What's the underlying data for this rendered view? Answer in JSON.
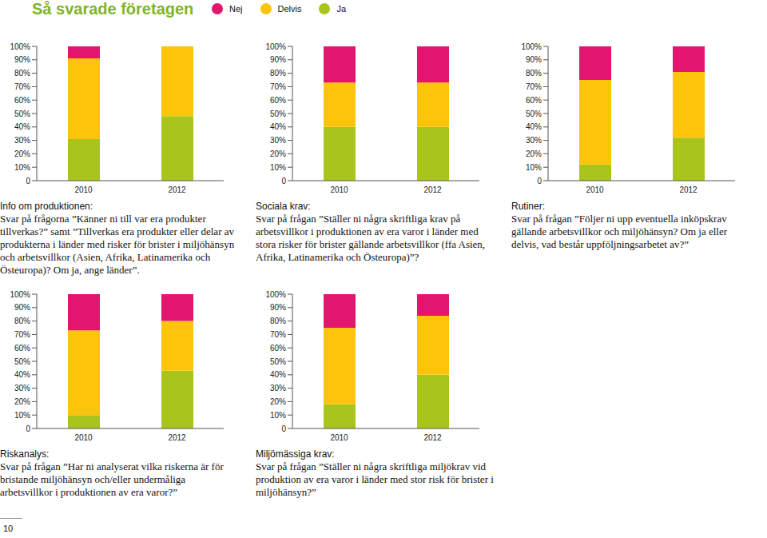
{
  "title": "Så svarade företagen",
  "page_number": "10",
  "chart_data": [
    {
      "type": "bar",
      "stacked": true,
      "title": "Info om produktionen:",
      "description": "Svar på frågorna ”Känner ni till var era produkter tillverkas?” samt ”Tillverkas era produkter eller delar av produkterna i länder med risker för brister i miljöhänsyn och arbetsvillkor (Asien, Afrika, Latinamerika och Östeuropa)? Om ja, ange länder”.",
      "categories": [
        "2010",
        "2012"
      ],
      "series": [
        {
          "name": "Ja",
          "color": "#a9c51b",
          "values": [
            31,
            48
          ]
        },
        {
          "name": "Delvis",
          "color": "#fdc40c",
          "values": [
            60,
            52
          ]
        },
        {
          "name": "Nej",
          "color": "#e2156f",
          "values": [
            9,
            0
          ]
        }
      ],
      "ylim": [
        0,
        100
      ],
      "yticks": [
        0,
        {
          "value": 10,
          "label": "10%"
        },
        {
          "value": 20,
          "label": "20%"
        },
        {
          "value": 30,
          "label": "30%"
        },
        {
          "value": 40,
          "label": "40%"
        },
        {
          "value": 50,
          "label": "50%"
        },
        {
          "value": 60,
          "label": "60%"
        },
        {
          "value": 70,
          "label": "70%"
        },
        {
          "value": 80,
          "label": "80%"
        },
        {
          "value": 90,
          "label": "90%"
        },
        {
          "value": 100,
          "label": "100%"
        }
      ]
    },
    {
      "type": "bar",
      "stacked": true,
      "title": "Sociala krav:",
      "description": "Svar på frågan ”Ställer ni några skriftliga krav på arbetsvillkor i produktionen av era varor i länder med stora risker för brister gällande arbetsvillkor (ffa Asien, Afrika, Latinamerika och Östeuropa)”?",
      "categories": [
        "2010",
        "2012"
      ],
      "series": [
        {
          "name": "Ja",
          "color": "#a9c51b",
          "values": [
            40,
            40
          ]
        },
        {
          "name": "Delvis",
          "color": "#fdc40c",
          "values": [
            33,
            33
          ]
        },
        {
          "name": "Nej",
          "color": "#e2156f",
          "values": [
            27,
            27
          ]
        }
      ],
      "ylim": [
        0,
        100
      ],
      "yticks": [
        0,
        {
          "value": 10,
          "label": "10%"
        },
        {
          "value": 20,
          "label": "20%"
        },
        {
          "value": 30,
          "label": "30%"
        },
        {
          "value": 40,
          "label": "40%"
        },
        {
          "value": 50,
          "label": "50%"
        },
        {
          "value": 60,
          "label": "60%"
        },
        {
          "value": 70,
          "label": "70%"
        },
        {
          "value": 80,
          "label": "80%"
        },
        {
          "value": 90,
          "label": "90%"
        },
        {
          "value": 100,
          "label": "100%"
        }
      ]
    },
    {
      "type": "bar",
      "stacked": true,
      "title": "Rutiner:",
      "description": "Svar på frågan ”Följer ni upp eventuella inköpskrav gällande arbetsvillkor och miljöhänsyn? Om ja eller delvis, vad består uppföljningsarbetet av?”",
      "categories": [
        "2010",
        "2012"
      ],
      "series": [
        {
          "name": "Ja",
          "color": "#a9c51b",
          "values": [
            12,
            32
          ]
        },
        {
          "name": "Delvis",
          "color": "#fdc40c",
          "values": [
            63,
            49
          ]
        },
        {
          "name": "Nej",
          "color": "#e2156f",
          "values": [
            25,
            19
          ]
        }
      ],
      "ylim": [
        0,
        100
      ],
      "yticks": [
        0,
        {
          "value": 10,
          "label": "10%"
        },
        {
          "value": 20,
          "label": "20%"
        },
        {
          "value": 30,
          "label": "30%"
        },
        {
          "value": 40,
          "label": "40%"
        },
        {
          "value": 50,
          "label": "50%"
        },
        {
          "value": 60,
          "label": "60%"
        },
        {
          "value": 70,
          "label": "70%"
        },
        {
          "value": 80,
          "label": "80%"
        },
        {
          "value": 90,
          "label": "90%"
        },
        {
          "value": 100,
          "label": "100%"
        }
      ]
    },
    {
      "type": "bar",
      "stacked": true,
      "title": "Riskanalys:",
      "description": "Svar på frågan ”Har ni analyserat vilka riskerna är för bristande miljöhänsyn och/eller undermåliga arbetsvillkor i produktionen av era varor?”",
      "categories": [
        "2010",
        "2012"
      ],
      "series": [
        {
          "name": "Ja",
          "color": "#a9c51b",
          "values": [
            10,
            43
          ]
        },
        {
          "name": "Delvis",
          "color": "#fdc40c",
          "values": [
            63,
            37
          ]
        },
        {
          "name": "Nej",
          "color": "#e2156f",
          "values": [
            27,
            20
          ]
        }
      ],
      "ylim": [
        0,
        100
      ],
      "yticks": [
        0,
        {
          "value": 10,
          "label": "10%"
        },
        {
          "value": 20,
          "label": "20%"
        },
        {
          "value": 30,
          "label": "30%"
        },
        {
          "value": 40,
          "label": "40%"
        },
        {
          "value": 50,
          "label": "50%"
        },
        {
          "value": 60,
          "label": "60%"
        },
        {
          "value": 70,
          "label": "70%"
        },
        {
          "value": 80,
          "label": "80%"
        },
        {
          "value": 90,
          "label": "90%"
        },
        {
          "value": 100,
          "label": "100%"
        }
      ]
    },
    {
      "type": "bar",
      "stacked": true,
      "title": "Miljömässiga krav:",
      "description": "Svar på frågan ”Ställer ni några skriftliga miljökrav vid produktion av era varor i länder med stor risk för brister i miljöhänsyn?”",
      "categories": [
        "2010",
        "2012"
      ],
      "series": [
        {
          "name": "Ja",
          "color": "#a9c51b",
          "values": [
            18,
            40
          ]
        },
        {
          "name": "Delvis",
          "color": "#fdc40c",
          "values": [
            57,
            44
          ]
        },
        {
          "name": "Nej",
          "color": "#e2156f",
          "values": [
            25,
            16
          ]
        }
      ],
      "ylim": [
        0,
        100
      ],
      "yticks": [
        0,
        {
          "value": 10,
          "label": "10%"
        },
        {
          "value": 20,
          "label": "20%"
        },
        {
          "value": 30,
          "label": "30%"
        },
        {
          "value": 40,
          "label": "40%"
        },
        {
          "value": 50,
          "label": "50%"
        },
        {
          "value": 60,
          "label": "60%"
        },
        {
          "value": 70,
          "label": "70%"
        },
        {
          "value": 80,
          "label": "80%"
        },
        {
          "value": 90,
          "label": "90%"
        },
        {
          "value": 100,
          "label": "100%"
        }
      ]
    }
  ]
}
